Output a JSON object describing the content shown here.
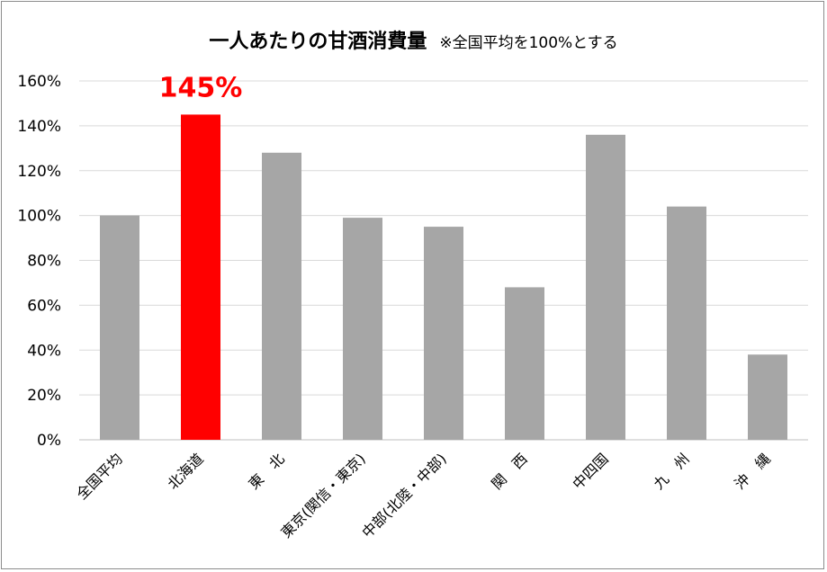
{
  "chart_data": {
    "type": "bar",
    "title": "一人あたりの甘酒消費量",
    "subtitle": "※全国平均を100%とする",
    "categories": [
      "全国平均",
      "北海道",
      "東　北",
      "東京(関信・東京)",
      "中部(北陸・中部)",
      "関　西",
      "中四国",
      "九　州",
      "沖　縄"
    ],
    "values": [
      100,
      145,
      128,
      99,
      95,
      68,
      136,
      104,
      38
    ],
    "unit": "%",
    "ylim": [
      0,
      160
    ],
    "yticks": [
      "0%",
      "20%",
      "40%",
      "60%",
      "80%",
      "100%",
      "120%",
      "140%",
      "160%"
    ],
    "highlight": {
      "index": 1,
      "label": "145%"
    },
    "colors": {
      "bar": "#a6a6a6",
      "highlight": "#ff0000",
      "grid": "#d9d9d9",
      "axis": "#bfbfbf"
    },
    "grid": true,
    "legend": "none"
  }
}
